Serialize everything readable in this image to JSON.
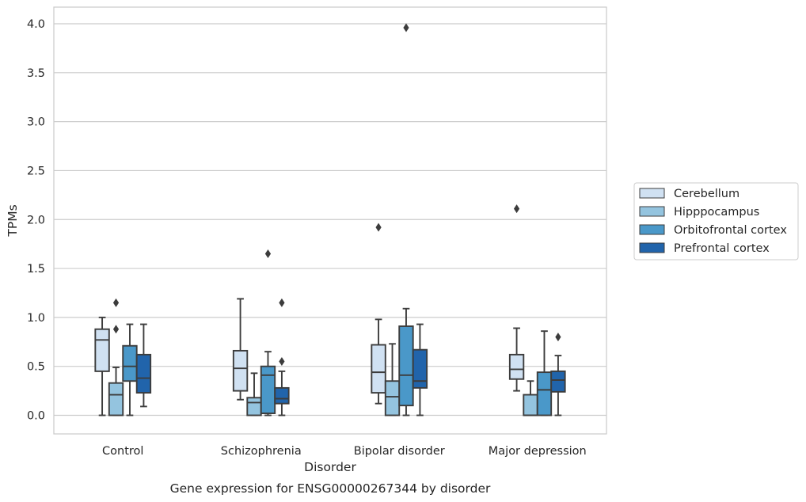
{
  "chart_data": {
    "type": "box",
    "caption": "Gene expression for ENSG00000267344 by disorder",
    "xlabel": "Disorder",
    "ylabel": "TPMs",
    "ylim": [
      -0.19,
      4.17
    ],
    "yticks": [
      "0.0",
      "0.5",
      "1.0",
      "1.5",
      "2.0",
      "2.5",
      "3.0",
      "3.5",
      "4.0"
    ],
    "grid": "horizontal",
    "legend_position": "right",
    "categories": [
      "Control",
      "Schizophrenia",
      "Bipolar disorder",
      "Major depression"
    ],
    "series": [
      {
        "name": "Cerebellum",
        "color": "#d0e1f2",
        "boxes": [
          {
            "whislo": 0.0,
            "q1": 0.45,
            "med": 0.77,
            "q3": 0.88,
            "whishi": 1.0,
            "fliers": []
          },
          {
            "whislo": 0.16,
            "q1": 0.25,
            "med": 0.48,
            "q3": 0.66,
            "whishi": 1.19,
            "fliers": []
          },
          {
            "whislo": 0.12,
            "q1": 0.23,
            "med": 0.44,
            "q3": 0.72,
            "whishi": 0.98,
            "fliers": [
              1.92
            ]
          },
          {
            "whislo": 0.25,
            "q1": 0.37,
            "med": 0.47,
            "q3": 0.62,
            "whishi": 0.89,
            "fliers": [
              2.11
            ]
          }
        ]
      },
      {
        "name": "Hipppocampus",
        "color": "#94c4df",
        "boxes": [
          {
            "whislo": 0.0,
            "q1": 0.0,
            "med": 0.21,
            "q3": 0.33,
            "whishi": 0.49,
            "fliers": [
              0.88,
              1.15
            ]
          },
          {
            "whislo": 0.0,
            "q1": 0.0,
            "med": 0.13,
            "q3": 0.18,
            "whishi": 0.43,
            "fliers": []
          },
          {
            "whislo": 0.0,
            "q1": 0.0,
            "med": 0.19,
            "q3": 0.35,
            "whishi": 0.73,
            "fliers": []
          },
          {
            "whislo": 0.0,
            "q1": 0.0,
            "med": 0.0,
            "q3": 0.21,
            "whishi": 0.35,
            "fliers": []
          }
        ]
      },
      {
        "name": "Orbitofrontal cortex",
        "color": "#4a98c9",
        "boxes": [
          {
            "whislo": 0.0,
            "q1": 0.35,
            "med": 0.5,
            "q3": 0.71,
            "whishi": 0.93,
            "fliers": []
          },
          {
            "whislo": 0.0,
            "q1": 0.02,
            "med": 0.41,
            "q3": 0.5,
            "whishi": 0.65,
            "fliers": [
              1.65
            ]
          },
          {
            "whislo": 0.0,
            "q1": 0.1,
            "med": 0.41,
            "q3": 0.91,
            "whishi": 1.09,
            "fliers": [
              3.96
            ]
          },
          {
            "whislo": 0.0,
            "q1": 0.0,
            "med": 0.26,
            "q3": 0.44,
            "whishi": 0.86,
            "fliers": []
          }
        ]
      },
      {
        "name": "Prefrontal cortex",
        "color": "#2164ab",
        "boxes": [
          {
            "whislo": 0.09,
            "q1": 0.23,
            "med": 0.38,
            "q3": 0.62,
            "whishi": 0.93,
            "fliers": []
          },
          {
            "whislo": 0.0,
            "q1": 0.12,
            "med": 0.17,
            "q3": 0.28,
            "whishi": 0.45,
            "fliers": [
              0.55,
              1.15
            ]
          },
          {
            "whislo": 0.0,
            "q1": 0.28,
            "med": 0.35,
            "q3": 0.67,
            "whishi": 0.93,
            "fliers": []
          },
          {
            "whislo": 0.0,
            "q1": 0.24,
            "med": 0.36,
            "q3": 0.45,
            "whishi": 0.61,
            "fliers": [
              0.8
            ]
          }
        ]
      }
    ]
  }
}
